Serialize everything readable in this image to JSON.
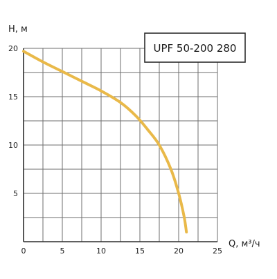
{
  "chart_data": {
    "type": "line",
    "title": "",
    "xlabel": "Q, м³/ч",
    "ylabel": "H, м",
    "xlim": [
      0,
      25
    ],
    "ylim": [
      0,
      20
    ],
    "grid": true,
    "x_ticks": [
      0,
      5,
      10,
      15,
      20,
      25
    ],
    "y_ticks": [
      5,
      10,
      15,
      20
    ],
    "x_tick_labels": [
      "0",
      "5",
      "10",
      "15",
      "20",
      "25"
    ],
    "y_tick_labels": [
      "5",
      "10",
      "15",
      "20"
    ],
    "legend": {
      "text": "UPF 50-200 280",
      "placement": "top-right"
    },
    "series": [
      {
        "name": "UPF 50-200 280",
        "color": "#e9b949",
        "x": [
          0,
          2.5,
          5,
          7.5,
          10,
          12.5,
          14.5,
          16,
          17.5,
          19,
          20,
          20.7,
          21
        ],
        "y": [
          19.7,
          18.6,
          17.6,
          16.6,
          15.6,
          14.4,
          13.0,
          11.6,
          10.0,
          7.5,
          5.0,
          2.6,
          1.0
        ]
      }
    ]
  }
}
